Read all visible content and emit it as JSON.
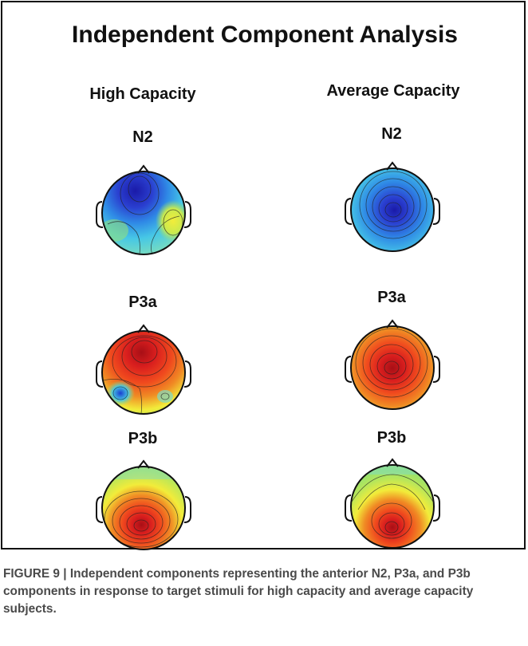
{
  "figure": {
    "title": "Independent Component Analysis",
    "columns": [
      {
        "label": "High Capacity",
        "components": [
          {
            "label": "N2",
            "map": "n2_high"
          },
          {
            "label": "P3a",
            "map": "p3a_high"
          },
          {
            "label": "P3b",
            "map": "p3b_high"
          }
        ]
      },
      {
        "label": "Average Capacity",
        "components": [
          {
            "label": "N2",
            "map": "n2_avg"
          },
          {
            "label": "P3a",
            "map": "p3a_avg"
          },
          {
            "label": "P3b",
            "map": "p3b_avg"
          }
        ]
      }
    ]
  },
  "caption": {
    "text": "FIGURE 9 | Independent components representing the anterior N2, P3a, and P3b components in response to target stimuli for high capacity and average capacity subjects."
  },
  "colors": {
    "deep_blue": "#1a1aa8",
    "blue": "#2f6fe0",
    "cyan": "#46c7e6",
    "green": "#9be26a",
    "yellow": "#f2ec3a",
    "orange": "#f08a24",
    "red": "#d91e1e",
    "dark_red": "#a80f16",
    "outline": "#111111"
  }
}
